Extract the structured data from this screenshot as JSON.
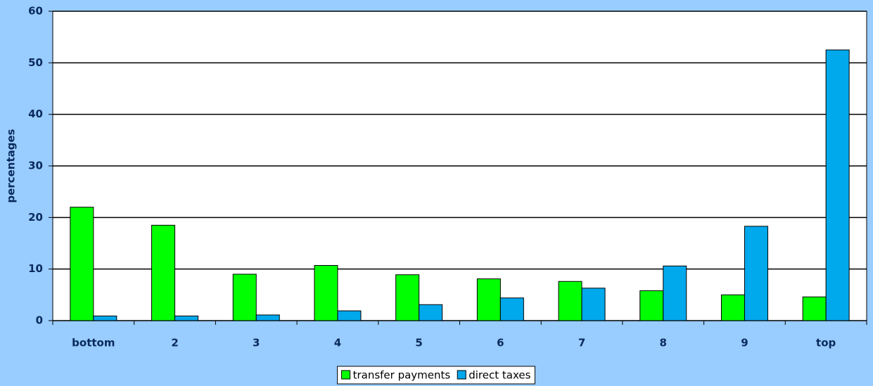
{
  "chart_data": {
    "type": "bar",
    "categories": [
      "bottom",
      "2",
      "3",
      "4",
      "5",
      "6",
      "7",
      "8",
      "9",
      "top"
    ],
    "series": [
      {
        "name": "transfer payments",
        "color": "#00ff00",
        "values": [
          22,
          18.5,
          9,
          10.7,
          8.9,
          8.1,
          7.6,
          5.8,
          5.0,
          4.6
        ]
      },
      {
        "name": "direct taxes",
        "color": "#00a8ec",
        "values": [
          0.9,
          0.9,
          1.1,
          1.9,
          3.1,
          4.4,
          6.3,
          10.6,
          18.3,
          52.5
        ]
      }
    ],
    "y_label": "percentages",
    "ylim": [
      0,
      60
    ],
    "yticks": [
      0,
      10,
      20,
      30,
      40,
      50,
      60
    ],
    "grid": true,
    "legend": "bottom"
  }
}
